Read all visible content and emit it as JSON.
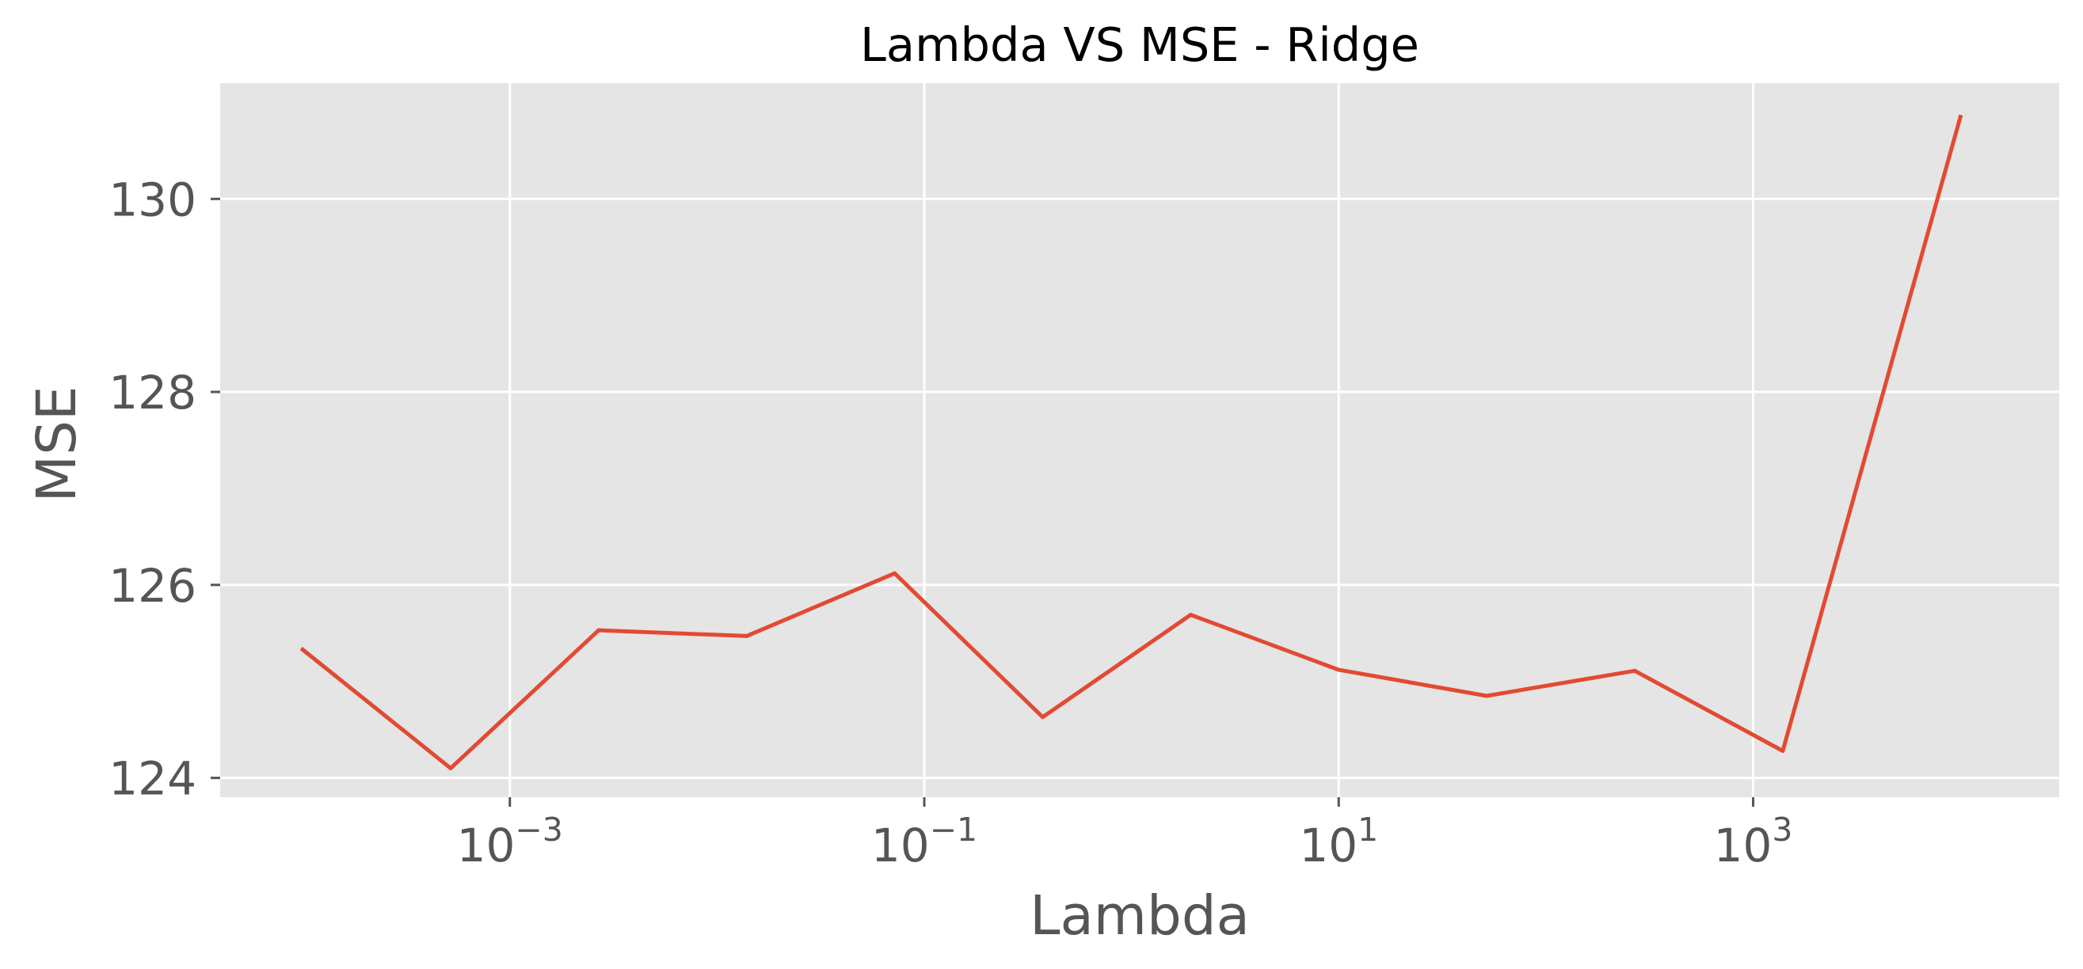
{
  "chart_data": {
    "type": "line",
    "title": "Lambda VS MSE - Ridge",
    "xlabel": "Lambda",
    "ylabel": "MSE",
    "xscale": "log",
    "xlim": [
      4e-05,
      30000
    ],
    "ylim": [
      123.8,
      131.2
    ],
    "grid": true,
    "style": "ggplot",
    "x": [
      0.0001,
      0.0005179,
      0.002683,
      0.01389,
      0.07197,
      0.3728,
      1.931,
      10.0,
      51.79,
      268.3,
      1389.5,
      10000
    ],
    "series": [
      {
        "color": "#E24A33",
        "values": [
          125.33,
          124.1,
          125.53,
          125.47,
          126.12,
          124.63,
          125.69,
          125.12,
          124.85,
          125.11,
          124.28,
          130.85
        ]
      }
    ],
    "xticks": [
      {
        "value": 0.001,
        "base": "10",
        "exp": "−3"
      },
      {
        "value": 0.1,
        "base": "10",
        "exp": "−1"
      },
      {
        "value": 10,
        "base": "10",
        "exp": "1"
      },
      {
        "value": 1000,
        "base": "10",
        "exp": "3"
      }
    ],
    "yticks": [
      {
        "value": 124,
        "label": "124"
      },
      {
        "value": 126,
        "label": "126"
      },
      {
        "value": 128,
        "label": "128"
      },
      {
        "value": 130,
        "label": "130"
      }
    ],
    "colors": {
      "plot_background": "#E5E5E5",
      "grid": "#FFFFFF",
      "line": "#E24A33",
      "tick_text": "#555555"
    }
  }
}
